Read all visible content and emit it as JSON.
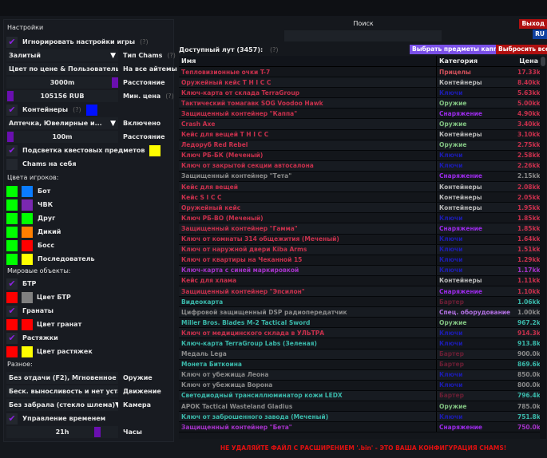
{
  "left": {
    "title": "Настройки",
    "ignore_game": "Игнорировать настройки игры",
    "help": "(?)",
    "chams_type_value": "Залитый",
    "chams_type_label": "Тип Chams",
    "color_mode_value": "Цвет по цене & Пользователь",
    "color_mode_label": "На все айтемы",
    "distance_value": "3000m",
    "distance_label": "Расстояние",
    "min_price_value": "105156 RUB",
    "min_price_label": "Мин. цена",
    "containers": "Контейнеры",
    "containers_combo": "Аптечка, Ювелирные и...",
    "containers_combo_label": "Включено",
    "cont_distance_value": "100m",
    "cont_distance_label": "Расстояние",
    "quest_highlight": "Подсветка квестовых предметов",
    "chams_self": "Chams на себя",
    "player_colors_title": "Цвета игроков:",
    "players": [
      {
        "label": "Бот",
        "c1": "#00ff00",
        "c2": "#0a7cff"
      },
      {
        "label": "ЧВК",
        "c1": "#00ff00",
        "c2": "#7a28b0"
      },
      {
        "label": "Друг",
        "c1": "#00ff00",
        "c2": "#00ff00"
      },
      {
        "label": "Дикий",
        "c1": "#00ff00",
        "c2": "#ff7f00"
      },
      {
        "label": "Босс",
        "c1": "#00ff00",
        "c2": "#ff0000"
      },
      {
        "label": "Последователь",
        "c1": "#00ff00",
        "c2": "#ffff00"
      }
    ],
    "world_title": "Мировые объекты:",
    "btr": "БТР",
    "btr_color": "Цвет БТР",
    "grenades": "Гранаты",
    "grenades_color": "Цвет гранат",
    "tripwires": "Растяжки",
    "tripwires_color": "Цвет растяжек",
    "misc_title": "Разное:",
    "weapon_value": "Без отдачи (F2), Мгновенное п",
    "weapon_label": "Оружие",
    "move_value": "Беск. выносливость и нет уста:",
    "move_label": "Движение",
    "camera_value": "Без забрала (стекло шлема)",
    "camera_label": "Камера",
    "time_control": "Управление временем",
    "hours_value": "21h",
    "hours_label": "Часы"
  },
  "right": {
    "search_label": "Поиск",
    "search_value": "",
    "exit": "Выход",
    "lang": "RU",
    "loot_title": "Доступный лут (3457):",
    "help": "(?)",
    "select_kappa": "Выбрать предметы каппа",
    "drop_all": "Выбросить все",
    "columns": [
      "Имя",
      "Категория",
      "Цена"
    ],
    "warning": "НЕ УДАЛЯЙТЕ ФАЙЛ С РАСШИРЕНИЕМ '.bin' - ЭТО ВАША КОНФИГУРАЦИЯ CHAMS!"
  },
  "colors": {
    "red": "#c8304c",
    "purple": "#a432c8",
    "teal": "#3ab8aa",
    "gray": "#8a8a8a",
    "cat_scope": "#d0505a",
    "cat_cont": "#b8b8b8",
    "cat_key": "#1c1cb0",
    "cat_weapon": "#80c080",
    "cat_gear": "#9a2ae8",
    "cat_barter": "#6a1e34",
    "cat_spec": "#b070e0"
  },
  "rows": [
    [
      "Тепловизионные очки T-7",
      "red",
      "Прицелы",
      "cat_scope",
      "17.33kk"
    ],
    [
      "Оружейный кейс T H I C C",
      "red",
      "Контейнеры",
      "cat_cont",
      "8.40kk"
    ],
    [
      "Ключ-карта от склада TerraGroup",
      "red",
      "Ключи",
      "cat_key",
      "5.63kk"
    ],
    [
      "Тактический томагавк SOG Voodoo Hawk",
      "red",
      "Оружие",
      "cat_weapon",
      "5.00kk"
    ],
    [
      "Защищенный контейнер \"Каппа\"",
      "red",
      "Снаряжение",
      "cat_gear",
      "4.90kk"
    ],
    [
      "Crash Axe",
      "red",
      "Оружие",
      "cat_weapon",
      "3.40kk"
    ],
    [
      "Кейс для вещей T H I C C",
      "red",
      "Контейнеры",
      "cat_cont",
      "3.10kk"
    ],
    [
      "Ледоруб Red Rebel",
      "red",
      "Оружие",
      "cat_weapon",
      "2.75kk"
    ],
    [
      "Ключ РБ-БК (Меченый)",
      "red",
      "Ключи",
      "cat_key",
      "2.58kk"
    ],
    [
      "Ключ от закрытой секции автосалона",
      "red",
      "Ключи",
      "cat_key",
      "2.26kk"
    ],
    [
      "Защищенный контейнер \"Тета\"",
      "gray",
      "Снаряжение",
      "cat_gear",
      "2.15kk"
    ],
    [
      "Кейс для вещей",
      "red",
      "Контейнеры",
      "cat_cont",
      "2.08kk"
    ],
    [
      "Кейс S I C C",
      "red",
      "Контейнеры",
      "cat_cont",
      "2.05kk"
    ],
    [
      "Оружейный кейс",
      "red",
      "Контейнеры",
      "cat_cont",
      "1.95kk"
    ],
    [
      "Ключ РБ-ВО (Меченый)",
      "red",
      "Ключи",
      "cat_key",
      "1.85kk"
    ],
    [
      "Защищенный контейнер \"Гамма\"",
      "red",
      "Снаряжение",
      "cat_gear",
      "1.85kk"
    ],
    [
      "Ключ от комнаты 314 общежития (Меченый)",
      "red",
      "Ключи",
      "cat_key",
      "1.64kk"
    ],
    [
      "Ключ от наружной двери Kiba Arms",
      "red",
      "Ключи",
      "cat_key",
      "1.51kk"
    ],
    [
      "Ключ от квартиры на Чеканной 15",
      "red",
      "Ключи",
      "cat_key",
      "1.29kk"
    ],
    [
      "Ключ-карта с синей маркировкой",
      "purple",
      "Ключи",
      "cat_key",
      "1.17kk"
    ],
    [
      "Кейс для хлама",
      "red",
      "Контейнеры",
      "cat_cont",
      "1.11kk"
    ],
    [
      "Защищенный контейнер \"Эпсилон\"",
      "red",
      "Снаряжение",
      "cat_gear",
      "1.10kk"
    ],
    [
      "Видеокарта",
      "teal",
      "Бартер",
      "cat_barter",
      "1.06kk"
    ],
    [
      "Цифровой защищенный DSP радиопередатчик",
      "gray",
      "Спец. оборудование",
      "cat_spec",
      "1.00kk"
    ],
    [
      "Miller Bros. Blades M-2 Tactical Sword",
      "teal",
      "Оружие",
      "cat_weapon",
      "967.2k"
    ],
    [
      "Ключ от медицинского склада в УЛЬТРА",
      "red",
      "Ключи",
      "cat_key",
      "914.3k"
    ],
    [
      "Ключ-карта TerraGroup Labs (Зеленая)",
      "teal",
      "Ключи",
      "cat_key",
      "913.8k"
    ],
    [
      "Медаль Lega",
      "gray",
      "Бартер",
      "cat_barter",
      "900.0k"
    ],
    [
      "Монета Биткоина",
      "teal",
      "Бартер",
      "cat_barter",
      "869.6k"
    ],
    [
      "Ключ от убежища Леона",
      "gray",
      "Ключи",
      "cat_key",
      "850.0k"
    ],
    [
      "Ключ от убежища Ворона",
      "gray",
      "Ключи",
      "cat_key",
      "800.0k"
    ],
    [
      "Светодиодный трансиллюминатор кожи LEDX",
      "teal",
      "Бартер",
      "cat_barter",
      "796.4k"
    ],
    [
      "APOK Tactical Wasteland Gladius",
      "gray",
      "Оружие",
      "cat_weapon",
      "785.0k"
    ],
    [
      "Ключ от заброшенного завода (Меченый)",
      "teal",
      "Ключи",
      "cat_key",
      "751.8k"
    ],
    [
      "Защищенный контейнер \"Бета\"",
      "purple",
      "Снаряжение",
      "cat_gear",
      "750.0k"
    ]
  ]
}
